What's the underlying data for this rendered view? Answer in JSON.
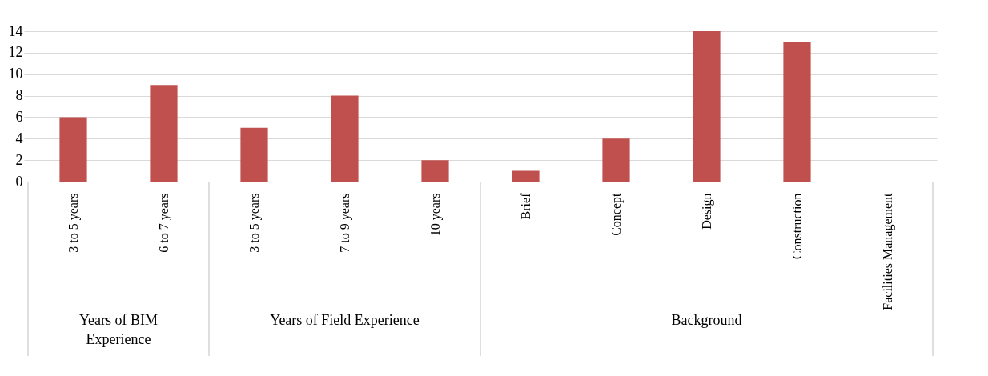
{
  "chart_data": {
    "type": "bar",
    "categories": [
      "3 to 5 years",
      "6 to 7 years",
      "3 to 5 years",
      "7 to 9 years",
      "10 years",
      "Brief",
      "Concept",
      "Design",
      "Construction",
      "Facilities Management"
    ],
    "values": [
      6,
      9,
      5,
      8,
      2,
      1,
      4,
      14,
      13,
      0
    ],
    "color": "#c0504d",
    "ylim": [
      0,
      14
    ],
    "yticks": [
      0,
      2,
      4,
      6,
      8,
      10,
      12,
      14
    ],
    "grid": "y",
    "annotations": [
      "Years of BIM Experience",
      "Years of Field Experience",
      "Background"
    ]
  }
}
